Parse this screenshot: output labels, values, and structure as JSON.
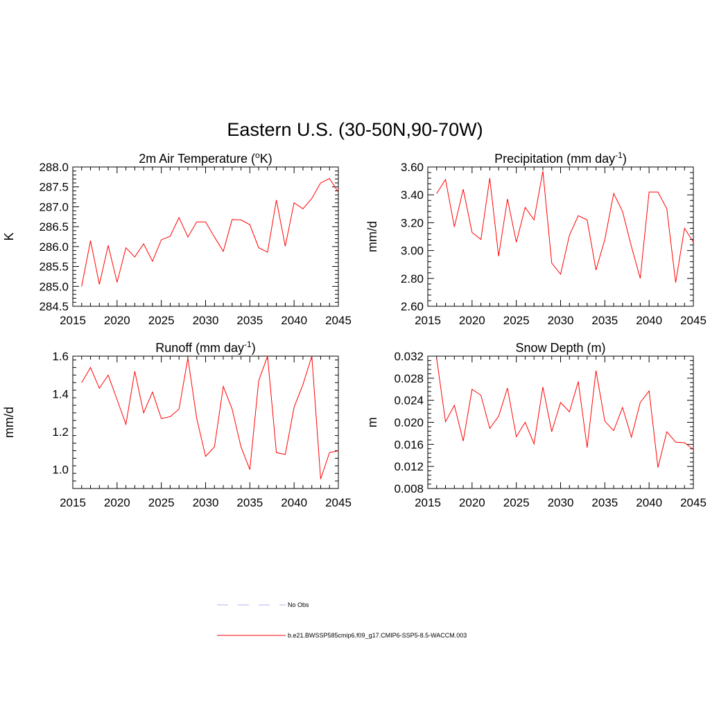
{
  "title": "Eastern U.S. (30-50N,90-70W)",
  "colors": {
    "model": "#ff0000",
    "obs": "#b0b0e8",
    "frame": "#000000",
    "background": "#ffffff"
  },
  "legend": [
    {
      "label": "No Obs",
      "style": "dashed",
      "color": "#b0b0e8"
    },
    {
      "label": "b.e21.BWSSP585cmip6.f09_g17.CMIP6-SSP5-8.5-WACCM.003",
      "style": "solid",
      "color": "#ff0000"
    }
  ],
  "chart_data": [
    {
      "type": "line",
      "title": "2m Air Temperature (",
      "title_sup": "o",
      "title_after": "K)",
      "ylabel": "K",
      "xlabel": "",
      "xlim": [
        2015,
        2045
      ],
      "ylim": [
        284.5,
        288.0
      ],
      "yticks": [
        "284.5",
        "285.0",
        "285.5",
        "286.0",
        "286.5",
        "287.0",
        "287.5",
        "288.0"
      ],
      "xticks": [
        "2015",
        "2020",
        "2025",
        "2030",
        "2035",
        "2040",
        "2045"
      ],
      "x": [
        2016,
        2017,
        2018,
        2019,
        2020,
        2021,
        2022,
        2023,
        2024,
        2025,
        2026,
        2027,
        2028,
        2029,
        2030,
        2031,
        2032,
        2033,
        2034,
        2035,
        2036,
        2037,
        2038,
        2039,
        2040,
        2041,
        2042,
        2043,
        2044,
        2045
      ],
      "series": [
        {
          "name": "b.e21.BWSSP585cmip6.f09_g17.CMIP6-SSP5-8.5-WACCM.003",
          "values": [
            285.0,
            286.15,
            285.05,
            286.03,
            285.1,
            285.97,
            285.74,
            286.07,
            285.63,
            286.17,
            286.26,
            286.73,
            286.24,
            286.62,
            286.62,
            286.24,
            285.88,
            286.68,
            286.67,
            286.55,
            285.97,
            285.86,
            287.17,
            286.01,
            287.1,
            286.95,
            287.21,
            287.6,
            287.71,
            287.37
          ]
        }
      ]
    },
    {
      "type": "line",
      "title": "Precipitation (mm day",
      "title_sup": "-1",
      "title_after": ")",
      "ylabel": "mm/d",
      "xlabel": "",
      "xlim": [
        2015,
        2045
      ],
      "ylim": [
        2.6,
        3.6
      ],
      "yticks": [
        "2.60",
        "2.80",
        "3.00",
        "3.20",
        "3.40",
        "3.60"
      ],
      "xticks": [
        "2015",
        "2020",
        "2025",
        "2030",
        "2035",
        "2040",
        "2045"
      ],
      "x": [
        2016,
        2017,
        2018,
        2019,
        2020,
        2021,
        2022,
        2023,
        2024,
        2025,
        2026,
        2027,
        2028,
        2029,
        2030,
        2031,
        2032,
        2033,
        2034,
        2035,
        2036,
        2037,
        2038,
        2039,
        2040,
        2041,
        2042,
        2043,
        2044,
        2045
      ],
      "series": [
        {
          "name": "b.e21.BWSSP585cmip6.f09_g17.CMIP6-SSP5-8.5-WACCM.003",
          "values": [
            3.41,
            3.51,
            3.17,
            3.44,
            3.13,
            3.08,
            3.52,
            2.96,
            3.37,
            3.06,
            3.31,
            3.22,
            3.57,
            2.91,
            2.83,
            3.11,
            3.25,
            3.22,
            2.86,
            3.08,
            3.41,
            3.28,
            3.03,
            2.8,
            3.42,
            3.42,
            3.3,
            2.77,
            3.16,
            3.06
          ]
        }
      ]
    },
    {
      "type": "line",
      "title": "Runoff (mm day",
      "title_sup": "-1",
      "title_after": ")",
      "ylabel": "mm/d",
      "xlabel": "",
      "xlim": [
        2015,
        2045
      ],
      "ylim": [
        0.9,
        1.6
      ],
      "yticks": [
        "1.0",
        "1.2",
        "1.4",
        "1.6"
      ],
      "xticks": [
        "2015",
        "2020",
        "2025",
        "2030",
        "2035",
        "2040",
        "2045"
      ],
      "x": [
        2016,
        2017,
        2018,
        2019,
        2020,
        2021,
        2022,
        2023,
        2024,
        2025,
        2026,
        2027,
        2028,
        2029,
        2030,
        2031,
        2032,
        2033,
        2034,
        2035,
        2036,
        2037,
        2038,
        2039,
        2040,
        2041,
        2042,
        2043,
        2044,
        2045
      ],
      "series": [
        {
          "name": "b.e21.BWSSP585cmip6.f09_g17.CMIP6-SSP5-8.5-WACCM.003",
          "values": [
            1.46,
            1.54,
            1.43,
            1.5,
            1.37,
            1.24,
            1.52,
            1.3,
            1.41,
            1.27,
            1.28,
            1.32,
            1.59,
            1.27,
            1.07,
            1.12,
            1.44,
            1.32,
            1.12,
            1.0,
            1.47,
            1.6,
            1.09,
            1.08,
            1.33,
            1.45,
            1.6,
            0.95,
            1.09,
            1.1
          ]
        }
      ]
    },
    {
      "type": "line",
      "title": "Snow Depth (m)",
      "title_sup": "",
      "title_after": "",
      "ylabel": "m",
      "xlabel": "",
      "xlim": [
        2015,
        2045
      ],
      "ylim": [
        0.008,
        0.032
      ],
      "yticks": [
        "0.008",
        "0.012",
        "0.016",
        "0.020",
        "0.024",
        "0.028",
        "0.032"
      ],
      "xticks": [
        "2015",
        "2020",
        "2025",
        "2030",
        "2035",
        "2040",
        "2045"
      ],
      "x": [
        2016,
        2017,
        2018,
        2019,
        2020,
        2021,
        2022,
        2023,
        2024,
        2025,
        2026,
        2027,
        2028,
        2029,
        2030,
        2031,
        2032,
        2033,
        2034,
        2035,
        2036,
        2037,
        2038,
        2039,
        2040,
        2041,
        2042,
        2043,
        2044,
        2045
      ],
      "series": [
        {
          "name": "b.e21.BWSSP585cmip6.f09_g17.CMIP6-SSP5-8.5-WACCM.003",
          "values": [
            0.0316,
            0.0201,
            0.0231,
            0.0166,
            0.026,
            0.0249,
            0.0189,
            0.0211,
            0.0262,
            0.0174,
            0.02,
            0.0161,
            0.0264,
            0.0183,
            0.0236,
            0.0219,
            0.0274,
            0.0154,
            0.0294,
            0.0202,
            0.0185,
            0.0227,
            0.0173,
            0.0236,
            0.0257,
            0.0118,
            0.0183,
            0.0164,
            0.0163,
            0.0151
          ]
        }
      ]
    }
  ]
}
